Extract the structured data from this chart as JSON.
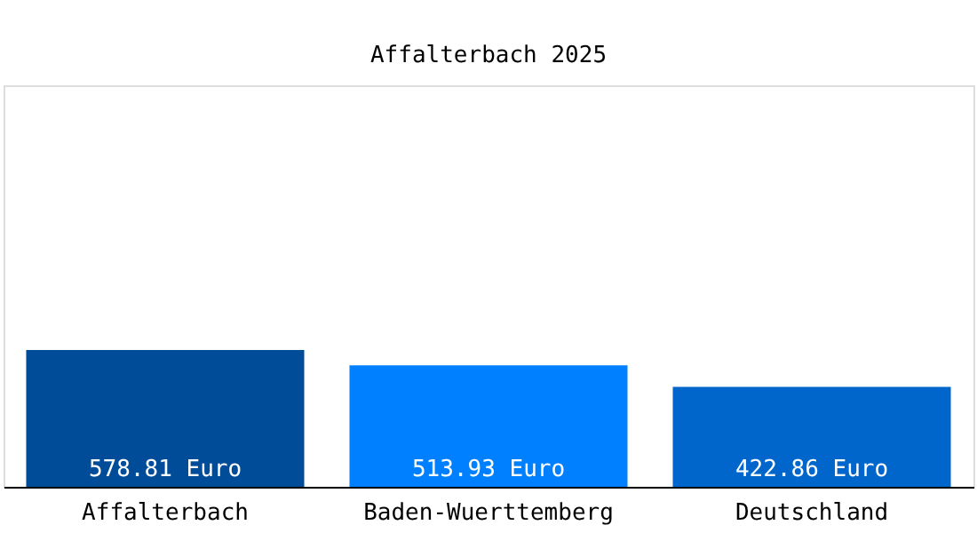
{
  "chart_data": {
    "type": "bar",
    "title": "Affalterbach 2025",
    "categories": [
      "Affalterbach",
      "Baden-Wuerttemberg",
      "Deutschland"
    ],
    "values": [
      578.81,
      513.93,
      422.86
    ],
    "colors": [
      "#004c99",
      "#0080ff",
      "#0066cc"
    ],
    "value_labels": [
      "578.81 Euro",
      "513.93 Euro",
      "422.86 Euro"
    ],
    "ylim": [
      0,
      1700
    ],
    "tick_labels": "x"
  }
}
